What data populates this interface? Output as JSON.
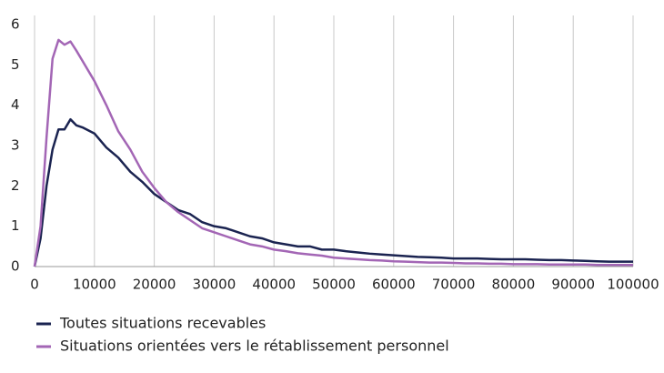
{
  "chart_data": {
    "type": "line",
    "x": [
      0,
      1000,
      2000,
      3000,
      4000,
      5000,
      6000,
      7000,
      8000,
      10000,
      12000,
      14000,
      16000,
      18000,
      20000,
      22000,
      24000,
      26000,
      28000,
      30000,
      32000,
      34000,
      36000,
      38000,
      40000,
      42000,
      44000,
      46000,
      48000,
      50000,
      52000,
      54000,
      56000,
      58000,
      60000,
      62000,
      64000,
      66000,
      68000,
      70000,
      72000,
      74000,
      76000,
      78000,
      80000,
      82000,
      84000,
      86000,
      88000,
      90000,
      92000,
      94000,
      96000,
      98000,
      100000
    ],
    "series": [
      {
        "name": "Toutes situations recevables",
        "color": "#1a2350",
        "values": [
          0,
          0.7,
          2.0,
          2.9,
          3.4,
          3.4,
          3.65,
          3.5,
          3.45,
          3.3,
          2.95,
          2.7,
          2.35,
          2.1,
          1.8,
          1.6,
          1.4,
          1.3,
          1.1,
          1.0,
          0.95,
          0.85,
          0.75,
          0.7,
          0.6,
          0.55,
          0.5,
          0.5,
          0.42,
          0.42,
          0.38,
          0.35,
          0.32,
          0.3,
          0.28,
          0.26,
          0.24,
          0.23,
          0.22,
          0.2,
          0.2,
          0.2,
          0.19,
          0.18,
          0.18,
          0.18,
          0.17,
          0.16,
          0.16,
          0.15,
          0.14,
          0.13,
          0.12,
          0.12,
          0.12
        ]
      },
      {
        "name": "Situations orientées vers le rétablissement personnel",
        "color": "#a366b5",
        "values": [
          0,
          1.0,
          3.2,
          5.15,
          5.62,
          5.5,
          5.58,
          5.35,
          5.1,
          4.6,
          4.0,
          3.35,
          2.9,
          2.35,
          1.95,
          1.6,
          1.35,
          1.15,
          0.95,
          0.85,
          0.75,
          0.65,
          0.55,
          0.5,
          0.42,
          0.38,
          0.33,
          0.3,
          0.27,
          0.22,
          0.2,
          0.18,
          0.16,
          0.15,
          0.13,
          0.12,
          0.11,
          0.1,
          0.1,
          0.09,
          0.08,
          0.08,
          0.07,
          0.07,
          0.06,
          0.06,
          0.06,
          0.05,
          0.05,
          0.05,
          0.05,
          0.04,
          0.04,
          0.04,
          0.04
        ]
      }
    ],
    "xlim": [
      0,
      100000
    ],
    "xticks": [
      0,
      10000,
      20000,
      30000,
      40000,
      50000,
      60000,
      70000,
      80000,
      90000,
      100000
    ],
    "ylim": [
      0,
      6
    ],
    "yticks": [
      0,
      1,
      2,
      3,
      4,
      5,
      6
    ],
    "grid": "x"
  }
}
